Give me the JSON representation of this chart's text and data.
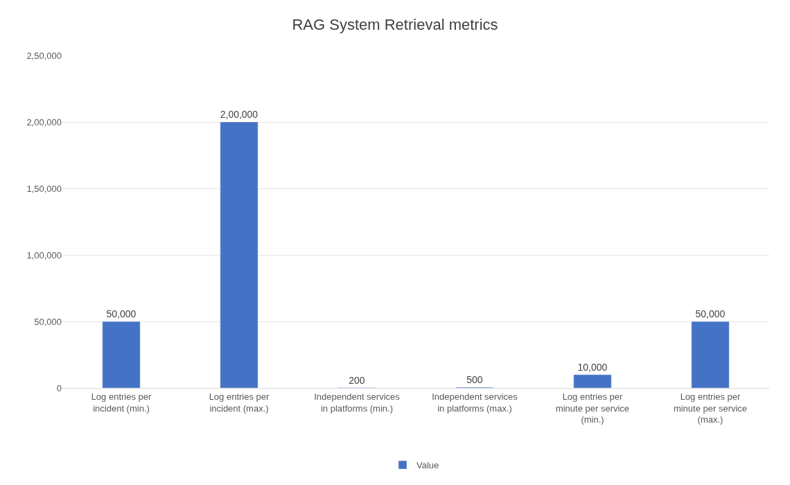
{
  "chart_data": {
    "type": "bar",
    "title": "RAG System Retrieval metrics",
    "categories": [
      "Log entries per incident (min.)",
      "Log entries per incident (max.)",
      "Independent services in platforms (min.)",
      "Independent services in platforms (max.)",
      "Log entries per minute per service (min.)",
      "Log entries per minute per service (max.)"
    ],
    "series": [
      {
        "name": "Value",
        "color": "#4472c4",
        "values": [
          50000,
          200000,
          200,
          500,
          10000,
          50000
        ],
        "value_labels": [
          "50,000",
          "2,00,000",
          "200",
          "500",
          "10,000",
          "50,000"
        ]
      }
    ],
    "ylim": [
      0,
      250000
    ],
    "yticks": [
      0,
      {
        "value": 50000,
        "label": "50,000"
      },
      {
        "value": 100000,
        "label": "1,00,000"
      },
      {
        "value": 150000,
        "label": "1,50,000"
      },
      {
        "value": 200000,
        "label": "2,00,000"
      },
      {
        "value": 250000,
        "label": "2,50,000"
      }
    ],
    "grid": "y",
    "legend": "bottom"
  }
}
